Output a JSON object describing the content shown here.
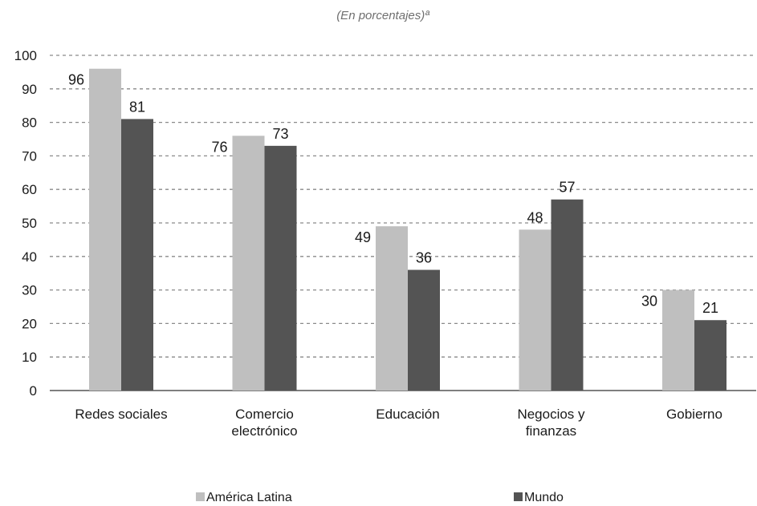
{
  "chart_data": {
    "type": "bar",
    "subtitle": "(En porcentajes)ª",
    "categories": [
      [
        "Redes sociales"
      ],
      [
        "Comercio",
        "electrónico"
      ],
      [
        "Educación"
      ],
      [
        "Negocios y",
        "finanzas"
      ],
      [
        "Gobierno"
      ]
    ],
    "series": [
      {
        "name": "América Latina",
        "color": "#bfbfbf",
        "values": [
          96,
          76,
          49,
          48,
          30
        ]
      },
      {
        "name": "Mundo",
        "color": "#545454",
        "values": [
          81,
          73,
          36,
          57,
          21
        ]
      }
    ],
    "ylim": [
      0,
      100
    ],
    "yticks": [
      0,
      10,
      20,
      30,
      40,
      50,
      60,
      70,
      80,
      90,
      100
    ],
    "grid": true,
    "legend_position": "bottom"
  }
}
